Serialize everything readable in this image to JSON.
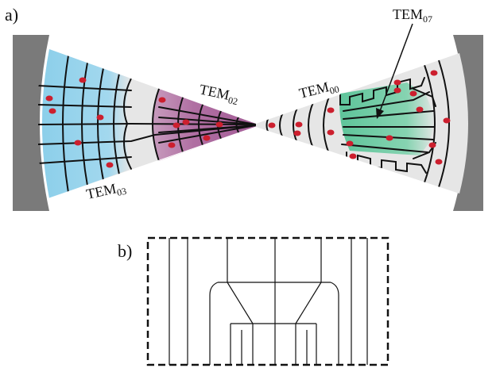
{
  "panel_a": {
    "label": "a)",
    "modes": {
      "tem03": {
        "base": "TEM",
        "sub": "03"
      },
      "tem02": {
        "base": "TEM",
        "sub": "02"
      },
      "tem00": {
        "base": "TEM",
        "sub": "00"
      },
      "tem07": {
        "base": "TEM",
        "sub": "07"
      }
    }
  },
  "panel_b": {
    "label": "b)"
  },
  "colors": {
    "mirror": "#7a7a7a",
    "beam_gray": "#e6e6e6",
    "tem03_fill": "#8fd0ea",
    "tem02_fill": "#b57aa8",
    "tem07_fill": "#6cc7a0",
    "dot": "#cc1f2e"
  }
}
